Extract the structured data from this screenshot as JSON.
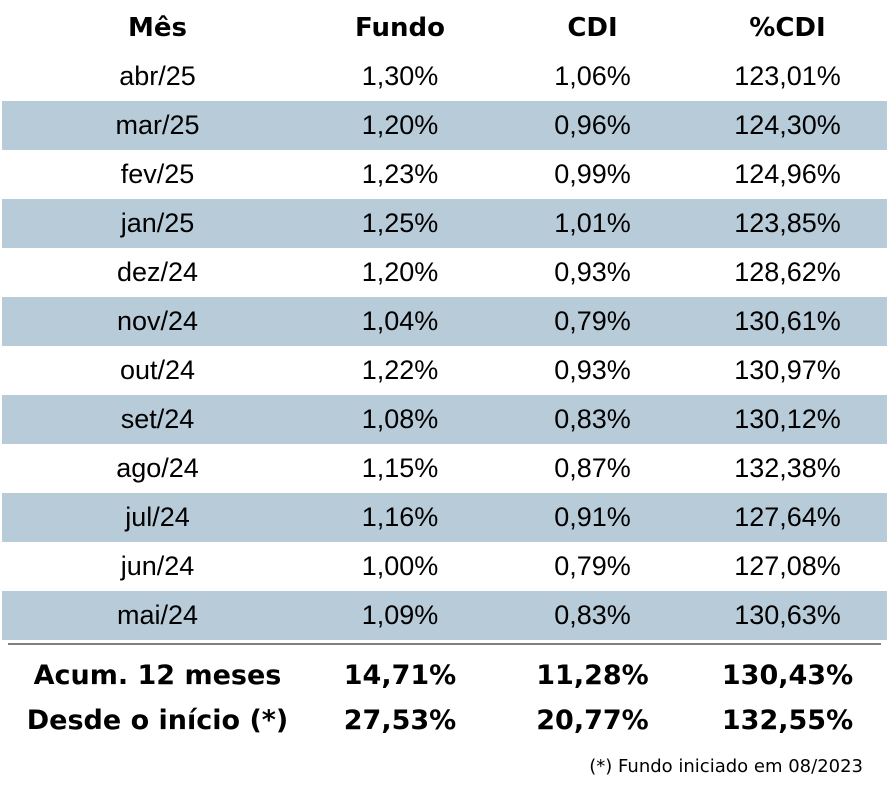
{
  "table": {
    "headers": [
      "Mês",
      "Fundo",
      "CDI",
      "%CDI"
    ],
    "rows": [
      [
        "abr/25",
        "1,30%",
        "1,06%",
        "123,01%"
      ],
      [
        "mar/25",
        "1,20%",
        "0,96%",
        "124,30%"
      ],
      [
        "fev/25",
        "1,23%",
        "0,99%",
        "124,96%"
      ],
      [
        "jan/25",
        "1,25%",
        "1,01%",
        "123,85%"
      ],
      [
        "dez/24",
        "1,20%",
        "0,93%",
        "128,62%"
      ],
      [
        "nov/24",
        "1,04%",
        "0,79%",
        "130,61%"
      ],
      [
        "out/24",
        "1,22%",
        "0,93%",
        "130,97%"
      ],
      [
        "set/24",
        "1,08%",
        "0,83%",
        "130,12%"
      ],
      [
        "ago/24",
        "1,15%",
        "0,87%",
        "132,38%"
      ],
      [
        "jul/24",
        "1,16%",
        "0,91%",
        "127,64%"
      ],
      [
        "jun/24",
        "1,00%",
        "0,79%",
        "127,08%"
      ],
      [
        "mai/24",
        "1,09%",
        "0,83%",
        "130,63%"
      ]
    ],
    "summary": [
      [
        "Acum. 12 meses",
        "14,71%",
        "11,28%",
        "130,43%"
      ],
      [
        "Desde o início (*)",
        "27,53%",
        "20,77%",
        "132,55%"
      ]
    ]
  },
  "footnote": "(*) Fundo iniciado em 08/2023",
  "colors": {
    "band": "#b8cbd9",
    "divider": "#7f7f7f"
  }
}
